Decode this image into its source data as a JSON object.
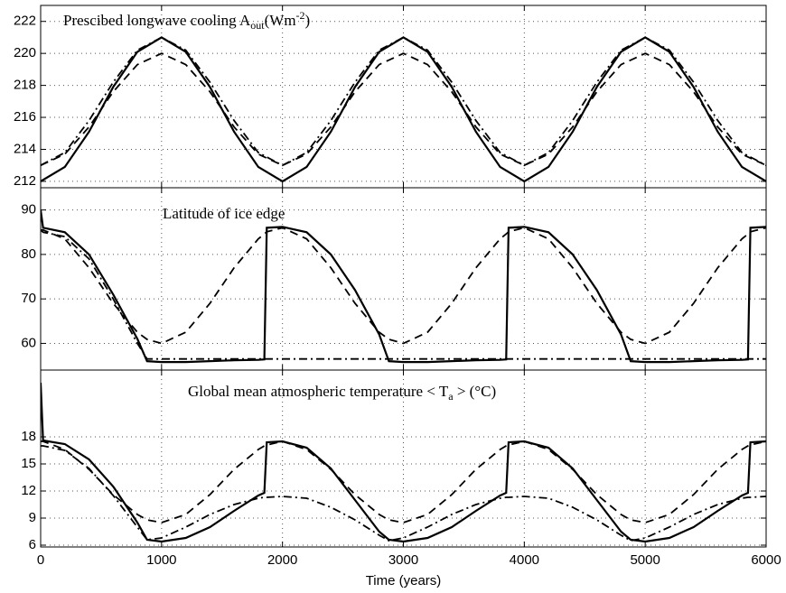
{
  "chart_data": [
    {
      "type": "line",
      "title": "Prescibed longwave cooling A_{out}(Wm^{-2})",
      "x": [
        0,
        200,
        400,
        600,
        800,
        1000,
        1200,
        1400,
        1600,
        1800,
        2000,
        2200,
        2400,
        2600,
        2800,
        3000,
        3200,
        3400,
        3600,
        3800,
        4000,
        4200,
        4400,
        4600,
        4800,
        5000,
        5200,
        5400,
        5600,
        5800,
        6000
      ],
      "series": [
        {
          "color": "#000000",
          "linestyle": "solid",
          "values": [
            212,
            212.9,
            215.1,
            217.9,
            220.1,
            221,
            220.1,
            217.9,
            215.1,
            212.9,
            212,
            212.9,
            215.1,
            217.9,
            220.1,
            221,
            220.1,
            217.9,
            215.1,
            212.9,
            212,
            212.9,
            215.1,
            217.9,
            220.1,
            221,
            220.1,
            217.9,
            215.1,
            212.9,
            212
          ]
        },
        {
          "color": "#000000",
          "linestyle": "dashed",
          "values": [
            213,
            213.7,
            215.4,
            217.6,
            219.3,
            220,
            219.3,
            217.6,
            215.4,
            213.7,
            213,
            213.7,
            215.4,
            217.6,
            219.3,
            220,
            219.3,
            217.6,
            215.4,
            213.7,
            213,
            213.7,
            215.4,
            217.6,
            219.3,
            220,
            219.3,
            217.6,
            215.4,
            213.7,
            213
          ]
        },
        {
          "color": "#000000",
          "linestyle": "dashdot",
          "values": [
            213,
            213.8,
            215.8,
            218.2,
            220.2,
            221,
            220.2,
            218.2,
            215.8,
            213.8,
            213,
            213.8,
            215.8,
            218.2,
            220.2,
            221,
            220.2,
            218.2,
            215.8,
            213.8,
            213,
            213.8,
            215.8,
            218.2,
            220.2,
            221,
            220.2,
            218.2,
            215.8,
            213.8,
            213
          ]
        }
      ],
      "xlim": [
        0,
        6000
      ],
      "xticks": [
        0,
        1000,
        2000,
        3000,
        4000,
        5000,
        6000
      ],
      "ylim": [
        211.6,
        223
      ],
      "yticks": [
        212,
        214,
        216,
        218,
        220,
        222
      ],
      "grid": true
    },
    {
      "type": "line",
      "title": "Latitude of ice edge",
      "x": [
        0,
        20,
        200,
        400,
        600,
        800,
        880,
        1000,
        1200,
        1400,
        1600,
        1800,
        1850,
        1870,
        2000,
        2200,
        2400,
        2600,
        2800,
        2880,
        3000,
        3200,
        3400,
        3600,
        3800,
        3850,
        3870,
        4000,
        4200,
        4400,
        4600,
        4800,
        4880,
        5000,
        5200,
        5400,
        5600,
        5800,
        5850,
        5870,
        6000
      ],
      "series": [
        {
          "color": "#000000",
          "linestyle": "solid",
          "values": [
            90,
            86,
            85,
            80,
            71,
            61,
            56,
            55.8,
            55.8,
            56,
            56.2,
            56.3,
            56.4,
            86,
            86.2,
            85,
            80,
            72,
            62,
            56,
            55.8,
            55.8,
            56,
            56.2,
            56.3,
            56.4,
            86,
            86.2,
            85,
            80,
            72,
            62,
            56,
            55.8,
            55.8,
            56,
            56.2,
            56.3,
            56.4,
            86,
            86.2
          ]
        },
        {
          "color": "#000000",
          "linestyle": "dashed",
          "values": [
            85.5,
            85.5,
            83.5,
            77,
            69,
            62.5,
            60.9,
            60,
            62.5,
            69,
            77,
            83.5,
            84.6,
            85.1,
            86,
            83.5,
            77,
            69,
            62.5,
            60.9,
            60,
            62.5,
            69,
            77,
            83.5,
            84.6,
            85.1,
            86,
            83.5,
            77,
            69,
            62.5,
            60.9,
            60,
            62.5,
            69,
            77,
            83.5,
            84.6,
            85.1,
            86
          ]
        },
        {
          "color": "#000000",
          "linestyle": "dashdot",
          "values": [
            85.5,
            85,
            84,
            79,
            70,
            60,
            56.5,
            56.5,
            56.5,
            56.5,
            56.5,
            56.5,
            56.5,
            56.5,
            56.5,
            56.5,
            56.5,
            56.5,
            56.5,
            56.5,
            56.5,
            56.5,
            56.5,
            56.5,
            56.5,
            56.5,
            56.5,
            56.5,
            56.5,
            56.5,
            56.5,
            56.5,
            56.5,
            56.5,
            56.5,
            56.5,
            56.5,
            56.5,
            56.5,
            56.5,
            56.5
          ]
        }
      ],
      "xlim": [
        0,
        6000
      ],
      "xticks": [
        0,
        1000,
        2000,
        3000,
        4000,
        5000,
        6000
      ],
      "ylim": [
        54,
        95
      ],
      "yticks": [
        60,
        70,
        80,
        90
      ],
      "grid": true
    },
    {
      "type": "line",
      "title": "Global mean atmospheric temperature < T_{a} > (°C)",
      "xlabel": "Time (years)",
      "x": [
        0,
        20,
        200,
        400,
        600,
        800,
        880,
        1000,
        1200,
        1400,
        1600,
        1800,
        1850,
        1870,
        2000,
        2200,
        2400,
        2600,
        2800,
        2880,
        3000,
        3200,
        3400,
        3600,
        3800,
        3850,
        3870,
        4000,
        4200,
        4400,
        4600,
        4800,
        4880,
        5000,
        5200,
        5400,
        5600,
        5800,
        5850,
        5870,
        6000
      ],
      "series": [
        {
          "color": "#000000",
          "linestyle": "solid",
          "values": [
            24,
            17.6,
            17.2,
            15.5,
            12.5,
            8.5,
            6.6,
            6.4,
            6.8,
            8,
            9.8,
            11.5,
            11.8,
            17.4,
            17.5,
            16.8,
            14.5,
            11,
            7.5,
            6.6,
            6.4,
            6.8,
            8,
            9.8,
            11.5,
            11.8,
            17.4,
            17.5,
            16.8,
            14.5,
            11,
            7.5,
            6.6,
            6.4,
            6.8,
            8,
            9.8,
            11.5,
            11.8,
            17.4,
            17.5
          ]
        },
        {
          "color": "#000000",
          "linestyle": "dashed",
          "values": [
            17.5,
            17.5,
            16.6,
            14.4,
            11.6,
            9.4,
            8.8,
            8.5,
            9.4,
            11.6,
            14.4,
            16.6,
            17,
            17.1,
            17.5,
            16.6,
            14.4,
            11.6,
            9.4,
            8.8,
            8.5,
            9.4,
            11.6,
            14.4,
            16.6,
            17,
            17.1,
            17.5,
            16.6,
            14.4,
            11.6,
            9.4,
            8.8,
            8.5,
            9.4,
            11.6,
            14.4,
            16.6,
            17,
            17.1,
            17.5
          ]
        },
        {
          "color": "#000000",
          "linestyle": "dashdot",
          "values": [
            17,
            17,
            16.5,
            14.5,
            11.5,
            8,
            6.6,
            6.8,
            8,
            9.4,
            10.5,
            11.2,
            11.3,
            11.3,
            11.4,
            11.2,
            10.2,
            8.8,
            7.1,
            6.5,
            6.8,
            8,
            9.4,
            10.5,
            11.2,
            11.3,
            11.3,
            11.4,
            11.2,
            10.2,
            8.8,
            7.1,
            6.5,
            6.8,
            8,
            9.4,
            10.5,
            11.2,
            11.3,
            11.3,
            11.4
          ]
        }
      ],
      "xlim": [
        0,
        6000
      ],
      "xticks": [
        0,
        1000,
        2000,
        3000,
        4000,
        5000,
        6000
      ],
      "ylim": [
        5.8,
        25.4
      ],
      "yticks": [
        6,
        9,
        12,
        15,
        18
      ],
      "grid": true
    }
  ]
}
